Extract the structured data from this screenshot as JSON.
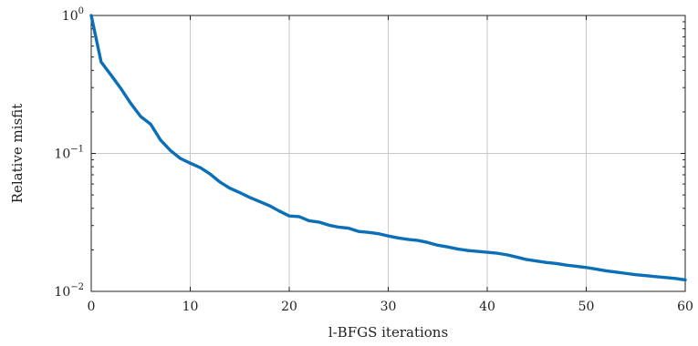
{
  "chart_data": {
    "type": "line",
    "xlabel": "l-BFGS iterations",
    "ylabel": "Relative misfit",
    "xlim": [
      0,
      60
    ],
    "ylim": [
      0.01,
      1
    ],
    "yscale": "log",
    "grid": true,
    "x_ticks": [
      "0",
      "10",
      "20",
      "30",
      "40",
      "50",
      "60"
    ],
    "y_ticks": [
      {
        "base": "10",
        "exp": "0"
      },
      {
        "base": "10",
        "exp": "−1"
      },
      {
        "base": "10",
        "exp": "−2"
      }
    ],
    "series": [
      {
        "color": "#0b6fb8",
        "x": [
          0,
          1,
          2,
          3,
          4,
          5,
          6,
          7,
          8,
          9,
          10,
          11,
          12,
          13,
          14,
          15,
          16,
          17,
          18,
          19,
          20,
          21,
          22,
          23,
          24,
          25,
          26,
          27,
          28,
          29,
          30,
          31,
          32,
          33,
          34,
          35,
          36,
          37,
          38,
          39,
          40,
          41,
          42,
          43,
          44,
          45,
          46,
          47,
          48,
          49,
          50,
          51,
          52,
          53,
          54,
          55,
          56,
          57,
          58,
          59,
          60
        ],
        "y": [
          1.0,
          0.46,
          0.37,
          0.295,
          0.23,
          0.185,
          0.163,
          0.125,
          0.105,
          0.092,
          0.085,
          0.079,
          0.071,
          0.062,
          0.056,
          0.052,
          0.048,
          0.0448,
          0.0418,
          0.0382,
          0.0352,
          0.0348,
          0.0325,
          0.0318,
          0.0302,
          0.0292,
          0.0287,
          0.0272,
          0.0268,
          0.0262,
          0.0252,
          0.0244,
          0.0238,
          0.0234,
          0.0226,
          0.0216,
          0.021,
          0.0203,
          0.0198,
          0.0195,
          0.0192,
          0.0189,
          0.0184,
          0.0177,
          0.017,
          0.0166,
          0.0162,
          0.0159,
          0.0155,
          0.0152,
          0.0149,
          0.0145,
          0.0141,
          0.0138,
          0.0135,
          0.0132,
          0.013,
          0.0128,
          0.0126,
          0.0124,
          0.0121
        ]
      }
    ]
  }
}
